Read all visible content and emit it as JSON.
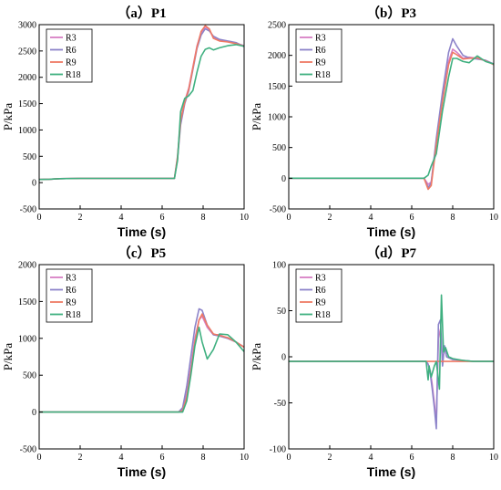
{
  "colors": {
    "R3": "#d77fc4",
    "R6": "#8c83c9",
    "R9": "#ef7a64",
    "R18": "#3fb080"
  },
  "chart_data": [
    {
      "type": "line",
      "title": "（a）P1",
      "xlabel": "Time (s)",
      "ylabel": "P/kPa",
      "xlim": [
        0,
        10
      ],
      "ylim": [
        -500,
        3000
      ],
      "xticks": [
        0,
        2,
        4,
        6,
        8,
        10
      ],
      "yticks": [
        -500,
        0,
        500,
        1000,
        1500,
        2000,
        2500,
        3000
      ],
      "legend": "top-left",
      "grid": false,
      "series": [
        {
          "name": "R3",
          "x": [
            0,
            0.5,
            1,
            2,
            4,
            6,
            6.6,
            6.75,
            6.9,
            7.1,
            7.3,
            7.5,
            7.7,
            7.9,
            8.1,
            8.3,
            8.5,
            8.8,
            9.2,
            9.6,
            10
          ],
          "y": [
            60,
            65,
            75,
            80,
            80,
            80,
            80,
            500,
            1200,
            1550,
            1800,
            2200,
            2600,
            2850,
            2960,
            2900,
            2750,
            2700,
            2680,
            2650,
            2600
          ]
        },
        {
          "name": "R6",
          "x": [
            0,
            0.5,
            1,
            2,
            4,
            6,
            6.6,
            6.75,
            6.9,
            7.1,
            7.3,
            7.5,
            7.7,
            7.9,
            8.1,
            8.3,
            8.5,
            8.8,
            9.2,
            9.6,
            10
          ],
          "y": [
            60,
            65,
            75,
            80,
            80,
            80,
            80,
            450,
            1100,
            1500,
            1750,
            2150,
            2550,
            2800,
            2920,
            2880,
            2780,
            2720,
            2690,
            2660,
            2580
          ]
        },
        {
          "name": "R9",
          "x": [
            0,
            0.5,
            1,
            2,
            4,
            6,
            6.6,
            6.75,
            6.9,
            7.1,
            7.3,
            7.5,
            7.7,
            7.9,
            8.1,
            8.3,
            8.5,
            8.8,
            9.2,
            9.6,
            10
          ],
          "y": [
            60,
            65,
            75,
            80,
            80,
            80,
            80,
            480,
            1180,
            1530,
            1780,
            2180,
            2580,
            2870,
            2980,
            2920,
            2740,
            2690,
            2670,
            2640,
            2590
          ]
        },
        {
          "name": "R18",
          "x": [
            0,
            0.5,
            1,
            2,
            4,
            6,
            6.6,
            6.75,
            6.9,
            7.1,
            7.3,
            7.5,
            7.7,
            7.9,
            8.1,
            8.3,
            8.5,
            8.8,
            9.2,
            9.6,
            10
          ],
          "y": [
            60,
            65,
            75,
            80,
            80,
            80,
            80,
            420,
            1350,
            1600,
            1650,
            1750,
            2100,
            2400,
            2530,
            2560,
            2520,
            2560,
            2600,
            2620,
            2590
          ]
        }
      ]
    },
    {
      "type": "line",
      "title": "（b）P3",
      "xlabel": "Time (s)",
      "ylabel": "P/kPa",
      "xlim": [
        0,
        10
      ],
      "ylim": [
        -500,
        2500
      ],
      "xticks": [
        0,
        2,
        4,
        6,
        8,
        10
      ],
      "yticks": [
        -500,
        0,
        500,
        1000,
        1500,
        2000,
        2500
      ],
      "legend": "top-left",
      "grid": false,
      "series": [
        {
          "name": "R3",
          "x": [
            0,
            2,
            4,
            6,
            6.6,
            6.8,
            6.95,
            7.2,
            7.5,
            7.8,
            8.0,
            8.2,
            8.5,
            8.8,
            9.2,
            9.6,
            10
          ],
          "y": [
            0,
            0,
            0,
            0,
            0,
            -100,
            -60,
            600,
            1300,
            1900,
            2100,
            2050,
            1950,
            1970,
            1950,
            1920,
            1850
          ]
        },
        {
          "name": "R6",
          "x": [
            0,
            2,
            4,
            6,
            6.6,
            6.8,
            6.95,
            7.2,
            7.5,
            7.8,
            8.0,
            8.2,
            8.5,
            8.8,
            9.2,
            9.6,
            10
          ],
          "y": [
            0,
            0,
            0,
            0,
            0,
            -150,
            -80,
            650,
            1400,
            2050,
            2270,
            2150,
            2000,
            1960,
            1940,
            1920,
            1860
          ]
        },
        {
          "name": "R9",
          "x": [
            0,
            2,
            4,
            6,
            6.6,
            6.8,
            6.95,
            7.2,
            7.5,
            7.8,
            8.0,
            8.2,
            8.5,
            8.8,
            9.2,
            9.6,
            10
          ],
          "y": [
            0,
            0,
            0,
            0,
            0,
            -180,
            -120,
            550,
            1250,
            1850,
            2050,
            2010,
            1940,
            1950,
            1960,
            1910,
            1850
          ]
        },
        {
          "name": "R18",
          "x": [
            0,
            2,
            4,
            6,
            6.6,
            6.8,
            6.95,
            7.2,
            7.5,
            7.8,
            8.0,
            8.2,
            8.5,
            8.8,
            9.2,
            9.6,
            10
          ],
          "y": [
            0,
            0,
            0,
            0,
            0,
            50,
            200,
            400,
            1100,
            1650,
            1950,
            1950,
            1900,
            1880,
            1990,
            1900,
            1860
          ]
        }
      ]
    },
    {
      "type": "line",
      "title": "（c）P5",
      "xlabel": "Time (s)",
      "ylabel": "P/kPa",
      "xlim": [
        0,
        10
      ],
      "ylim": [
        -500,
        2000
      ],
      "xticks": [
        0,
        2,
        4,
        6,
        8,
        10
      ],
      "yticks": [
        -500,
        0,
        500,
        1000,
        1500,
        2000
      ],
      "legend": "top-left",
      "grid": false,
      "series": [
        {
          "name": "R3",
          "x": [
            0,
            2,
            4,
            6,
            6.8,
            7.0,
            7.2,
            7.4,
            7.6,
            7.8,
            7.95,
            8.2,
            8.5,
            8.8,
            9.2,
            9.6,
            10
          ],
          "y": [
            0,
            0,
            0,
            0,
            0,
            40,
            250,
            600,
            1000,
            1250,
            1300,
            1150,
            1050,
            1050,
            1000,
            950,
            880
          ]
        },
        {
          "name": "R6",
          "x": [
            0,
            2,
            4,
            6,
            6.8,
            7.0,
            7.2,
            7.4,
            7.6,
            7.8,
            7.95,
            8.2,
            8.5,
            8.8,
            9.2,
            9.6,
            10
          ],
          "y": [
            0,
            0,
            0,
            0,
            0,
            60,
            350,
            750,
            1150,
            1400,
            1380,
            1180,
            1050,
            1030,
            1000,
            950,
            880
          ]
        },
        {
          "name": "R9",
          "x": [
            0,
            2,
            4,
            6,
            6.8,
            7.0,
            7.2,
            7.4,
            7.6,
            7.8,
            7.95,
            8.2,
            8.5,
            8.8,
            9.2,
            9.6,
            10
          ],
          "y": [
            0,
            0,
            0,
            0,
            0,
            20,
            200,
            550,
            950,
            1250,
            1330,
            1180,
            1060,
            1040,
            1010,
            950,
            880
          ]
        },
        {
          "name": "R18",
          "x": [
            0,
            2,
            4,
            6,
            6.8,
            7.0,
            7.2,
            7.4,
            7.6,
            7.8,
            7.95,
            8.2,
            8.5,
            8.8,
            9.2,
            9.6,
            10
          ],
          "y": [
            0,
            0,
            0,
            0,
            0,
            0,
            150,
            500,
            900,
            1150,
            950,
            720,
            850,
            1060,
            1050,
            950,
            820
          ]
        }
      ]
    },
    {
      "type": "line",
      "title": "（d）P7",
      "xlabel": "Time (s)",
      "ylabel": "P/kPa",
      "xlim": [
        0,
        10
      ],
      "ylim": [
        -100,
        100
      ],
      "xticks": [
        0,
        2,
        4,
        6,
        8,
        10
      ],
      "yticks": [
        -100,
        -50,
        0,
        50,
        100
      ],
      "legend": "top-left",
      "grid": false,
      "series": [
        {
          "name": "R3",
          "x": [
            0,
            2,
            4,
            6,
            6.7,
            6.8,
            6.9,
            7.0,
            7.1,
            7.2,
            7.3,
            7.4,
            7.5,
            7.6,
            7.7,
            8.0,
            8.5,
            9.0,
            10
          ],
          "y": [
            -5,
            -5,
            -5,
            -5,
            -5,
            -8,
            -15,
            -30,
            -50,
            -72,
            20,
            30,
            -5,
            10,
            0,
            -3,
            -4,
            -5,
            -5
          ]
        },
        {
          "name": "R6",
          "x": [
            0,
            2,
            4,
            6,
            6.7,
            6.8,
            6.9,
            7.0,
            7.1,
            7.2,
            7.3,
            7.4,
            7.5,
            7.6,
            7.7,
            8.0,
            8.5,
            9.0,
            10
          ],
          "y": [
            -5,
            -5,
            -5,
            -5,
            -5,
            -8,
            -18,
            -35,
            -55,
            -78,
            35,
            40,
            -10,
            12,
            0,
            -3,
            -4,
            -5,
            -5
          ]
        },
        {
          "name": "R9",
          "x": [
            0,
            2,
            4,
            6,
            7,
            8,
            9,
            10
          ],
          "y": [
            -5,
            -5,
            -5,
            -5,
            -5,
            -5,
            -5,
            -5
          ]
        },
        {
          "name": "R18",
          "x": [
            0,
            2,
            4,
            6,
            6.7,
            6.8,
            6.85,
            6.95,
            7.1,
            7.2,
            7.35,
            7.45,
            7.55,
            7.65,
            7.8,
            8.0,
            8.5,
            9.0,
            10
          ],
          "y": [
            -5,
            -5,
            -5,
            -5,
            -5,
            -25,
            -10,
            -22,
            -10,
            -5,
            -35,
            67,
            5,
            10,
            0,
            -2,
            -4,
            -5,
            -5
          ]
        }
      ]
    }
  ]
}
